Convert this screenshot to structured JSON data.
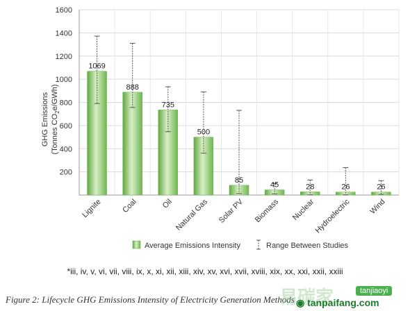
{
  "chart_data": {
    "type": "bar",
    "ylabel_line1": "GHG Emissions",
    "ylabel_line2": "(Tonnes CO",
    "ylabel_sub": "2",
    "ylabel_line2_end": "e/GWh)",
    "ylim": [
      0,
      1600
    ],
    "yticks": [
      "200",
      "400",
      "600",
      "800",
      "1000",
      "1200",
      "1400",
      "1600"
    ],
    "ytick_values": [
      200,
      400,
      600,
      800,
      1000,
      1200,
      1400,
      1600
    ],
    "categories": [
      "Lignite",
      "Coal",
      "Oil",
      "Natural Gas",
      "Solar PV",
      "Biomass",
      "Nuclear",
      "Hydroelectric",
      "Wind"
    ],
    "values": [
      1069,
      888,
      735,
      500,
      85,
      45,
      28,
      26,
      26
    ],
    "value_labels": [
      "1069",
      "888",
      "735",
      "500",
      "85",
      "45",
      "28",
      "26",
      "26"
    ],
    "range_low": [
      790,
      756,
      547,
      362,
      13,
      10,
      2,
      2,
      6
    ],
    "range_high": [
      1372,
      1310,
      935,
      891,
      731,
      101,
      130,
      237,
      124
    ],
    "grid": true,
    "legend": {
      "position": "bottom",
      "bar_label": "Average Emissions Intensity",
      "range_label": "Range Between Studies"
    },
    "colors": {
      "bar_light": "#d8efc4",
      "bar_mid": "#8fcc6e",
      "bar_dark": "#5fa843",
      "grid": "#d9d9d9",
      "errorbar": "#555555"
    }
  },
  "references": "*iii, iv, v, vi, vii, viii, ix, x, xi, xii, xiii, xiv, xv, xvi, xvii, xviii, xix, xx, xxi, xxii, xxiii",
  "caption": "Figure 2: Lifecycle GHG Emissions Intensity of Electricity Generation Methods",
  "watermark": {
    "cn_text": "易碳家",
    "pinyin": "tanjiaoyi",
    "url": "tanpaifang.com"
  }
}
